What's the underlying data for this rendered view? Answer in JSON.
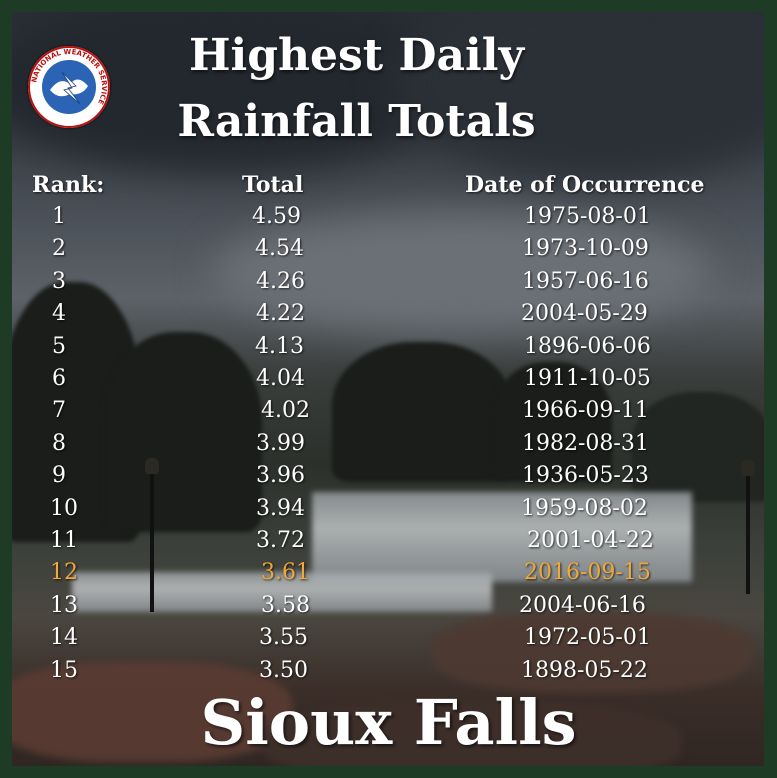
{
  "title_line1": "Highest Daily",
  "title_line2": "Rainfall Totals",
  "logo_text": "NATIONAL WEATHER SERVICE",
  "headers": {
    "rank": "Rank:",
    "total": "Total",
    "date": "Date of Occurrence"
  },
  "highlight_color": "#f0a838",
  "rows": [
    {
      "rank": "1",
      "total": "4.59",
      "date": "1975-08-01"
    },
    {
      "rank": "2",
      "total": "4.54",
      "date": "1973-10-09"
    },
    {
      "rank": "3",
      "total": "4.26",
      "date": "1957-06-16"
    },
    {
      "rank": "4",
      "total": "4.22",
      "date": "2004-05-29"
    },
    {
      "rank": "5",
      "total": "4.13",
      "date": "1896-06-06"
    },
    {
      "rank": "6",
      "total": "4.04",
      "date": "1911-10-05"
    },
    {
      "rank": "7",
      "total": "4.02",
      "date": "1966-09-11"
    },
    {
      "rank": "8",
      "total": "3.99",
      "date": "1982-08-31"
    },
    {
      "rank": "9",
      "total": "3.96",
      "date": "1936-05-23"
    },
    {
      "rank": "10",
      "total": "3.94",
      "date": "1959-08-02"
    },
    {
      "rank": "11",
      "total": "3.72",
      "date": "2001-04-22"
    },
    {
      "rank": "12",
      "total": "3.61",
      "date": "2016-09-15",
      "highlighted": true
    },
    {
      "rank": "13",
      "total": "3.58",
      "date": "2004-06-16"
    },
    {
      "rank": "14",
      "total": "3.55",
      "date": "1972-05-01"
    },
    {
      "rank": "15",
      "total": "3.50",
      "date": "1898-05-22"
    }
  ],
  "city": "Sioux Falls"
}
